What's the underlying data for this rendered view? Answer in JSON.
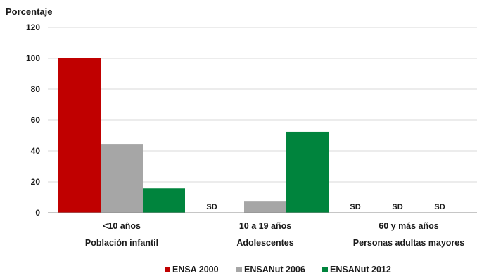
{
  "chart_data": {
    "type": "bar",
    "ylabel": "Porcentaje",
    "ylim": [
      0,
      120
    ],
    "yticks": [
      "0",
      "20",
      "40",
      "60",
      "80",
      "100",
      "120"
    ],
    "categories": [
      {
        "line1": "<10 años",
        "line2": "Población infantil"
      },
      {
        "line1": "10 a 19 años",
        "line2": "Adolescentes"
      },
      {
        "line1": "60 y más años",
        "line2": "Personas adultas mayores"
      }
    ],
    "series": [
      {
        "name": "ENSA 2000",
        "color": "#c00000",
        "values": [
          100,
          null,
          null
        ]
      },
      {
        "name": "ENSANut 2006",
        "color": "#a6a6a6",
        "values": [
          44.5,
          7.2,
          null
        ]
      },
      {
        "name": "ENSANut 2012",
        "color": "#00843d",
        "values": [
          15.8,
          52.3,
          null
        ]
      }
    ],
    "missing_label": "SD",
    "grid": true,
    "legend_position": "bottom"
  }
}
